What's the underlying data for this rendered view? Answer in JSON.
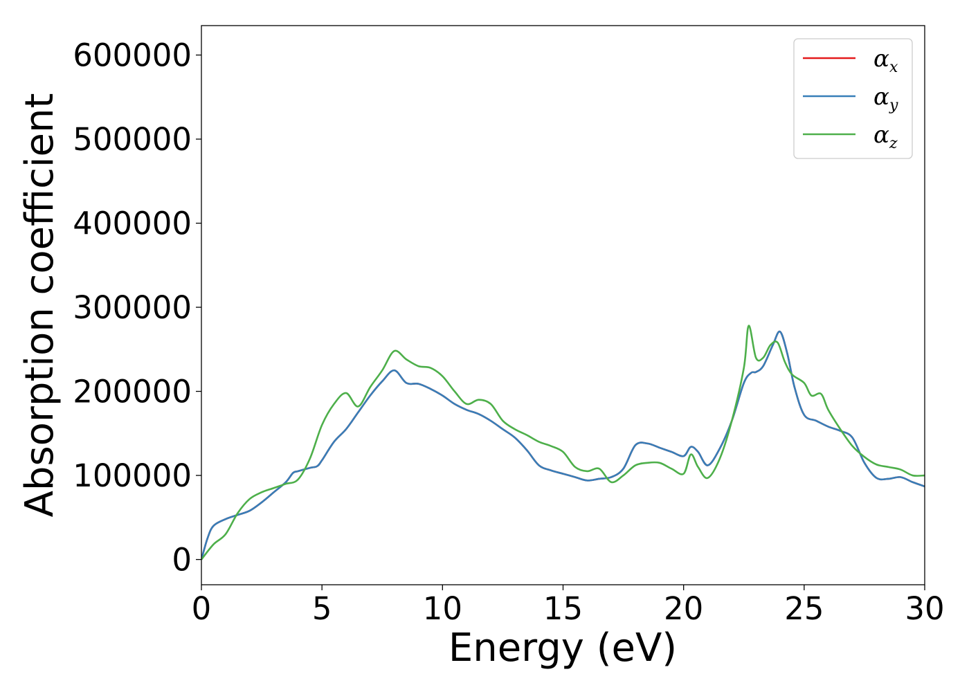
{
  "chart_data": {
    "type": "line",
    "title": "",
    "xlabel": "Energy (eV)",
    "ylabel": "Absorption coefficient",
    "xlim": [
      0,
      30
    ],
    "ylim": [
      -30000,
      635000
    ],
    "xticks": [
      0,
      5,
      10,
      15,
      20,
      25,
      30
    ],
    "yticks": [
      0,
      100000,
      200000,
      300000,
      400000,
      500000,
      600000
    ],
    "xtick_labels": [
      "0",
      "5",
      "10",
      "15",
      "20",
      "25",
      "30"
    ],
    "ytick_labels": [
      "0",
      "100000",
      "200000",
      "300000",
      "400000",
      "500000",
      "600000"
    ],
    "grid": false,
    "legend_position": "top-right",
    "series": [
      {
        "name": "αx",
        "label_base": "α",
        "label_sub": "x",
        "color": "#e41a1c",
        "x": [
          0,
          0.25,
          0.5,
          1,
          1.5,
          2,
          2.5,
          3,
          3.5,
          3.8,
          4,
          4.5,
          4.8,
          5,
          5.5,
          6,
          6.5,
          7,
          7.5,
          8,
          8.5,
          9,
          9.5,
          10,
          10.5,
          11,
          11.5,
          12,
          12.5,
          13,
          13.5,
          14,
          14.5,
          15,
          15.5,
          16,
          16.5,
          17,
          17.5,
          18,
          18.5,
          19,
          19.5,
          20,
          20.3,
          20.6,
          21,
          21.5,
          22,
          22.5,
          22.8,
          23,
          23.3,
          23.7,
          24,
          24.3,
          24.6,
          25,
          25.5,
          26,
          26.5,
          27,
          27.5,
          28,
          28.5,
          29,
          29.5,
          30
        ],
        "values": [
          0,
          25000,
          40000,
          48000,
          53000,
          58000,
          68000,
          80000,
          92000,
          103000,
          105000,
          109000,
          111000,
          118000,
          140000,
          155000,
          175000,
          195000,
          212000,
          225000,
          210000,
          209000,
          203000,
          195000,
          185000,
          178000,
          173000,
          165000,
          155000,
          145000,
          130000,
          112000,
          106000,
          102000,
          98000,
          94000,
          96000,
          98000,
          108000,
          136000,
          138000,
          133000,
          128000,
          123000,
          134000,
          128000,
          112000,
          132000,
          165000,
          210000,
          222000,
          223000,
          230000,
          255000,
          271000,
          245000,
          205000,
          172000,
          165000,
          158000,
          153000,
          145000,
          115000,
          97000,
          96000,
          98000,
          92000,
          87000
        ]
      },
      {
        "name": "αy",
        "label_base": "α",
        "label_sub": "y",
        "color": "#377eb8",
        "x": [
          0,
          0.25,
          0.5,
          1,
          1.5,
          2,
          2.5,
          3,
          3.5,
          3.8,
          4,
          4.5,
          4.8,
          5,
          5.5,
          6,
          6.5,
          7,
          7.5,
          8,
          8.5,
          9,
          9.5,
          10,
          10.5,
          11,
          11.5,
          12,
          12.5,
          13,
          13.5,
          14,
          14.5,
          15,
          15.5,
          16,
          16.5,
          17,
          17.5,
          18,
          18.5,
          19,
          19.5,
          20,
          20.3,
          20.6,
          21,
          21.5,
          22,
          22.5,
          22.8,
          23,
          23.3,
          23.7,
          24,
          24.3,
          24.6,
          25,
          25.5,
          26,
          26.5,
          27,
          27.5,
          28,
          28.5,
          29,
          29.5,
          30
        ],
        "values": [
          0,
          25000,
          40000,
          48000,
          53000,
          58000,
          68000,
          80000,
          92000,
          103000,
          105000,
          109000,
          111000,
          118000,
          140000,
          155000,
          175000,
          195000,
          212000,
          225000,
          210000,
          209000,
          203000,
          195000,
          185000,
          178000,
          173000,
          165000,
          155000,
          145000,
          130000,
          112000,
          106000,
          102000,
          98000,
          94000,
          96000,
          98000,
          108000,
          136000,
          138000,
          133000,
          128000,
          123000,
          134000,
          128000,
          112000,
          132000,
          165000,
          210000,
          222000,
          223000,
          230000,
          255000,
          271000,
          245000,
          205000,
          172000,
          165000,
          158000,
          153000,
          145000,
          115000,
          97000,
          96000,
          98000,
          92000,
          87000
        ]
      },
      {
        "name": "αz",
        "label_base": "α",
        "label_sub": "z",
        "color": "#4daf4a",
        "x": [
          0,
          0.5,
          1,
          1.5,
          2,
          2.5,
          3,
          3.5,
          4,
          4.5,
          5,
          5.5,
          6,
          6.5,
          7,
          7.5,
          8,
          8.5,
          9,
          9.5,
          10,
          10.5,
          11,
          11.5,
          12,
          12.5,
          13,
          13.5,
          14,
          14.5,
          15,
          15.5,
          16,
          16.5,
          17,
          17.5,
          18,
          18.5,
          19,
          19.5,
          20,
          20.3,
          20.6,
          21,
          21.5,
          22,
          22.5,
          22.7,
          23,
          23.3,
          23.6,
          23.9,
          24.2,
          24.5,
          25,
          25.3,
          25.7,
          26,
          26.5,
          27,
          27.5,
          28,
          28.5,
          29,
          29.5,
          30
        ],
        "values": [
          0,
          18000,
          30000,
          55000,
          72000,
          80000,
          85000,
          90000,
          95000,
          120000,
          160000,
          185000,
          198000,
          182000,
          205000,
          225000,
          248000,
          238000,
          230000,
          228000,
          218000,
          200000,
          185000,
          190000,
          185000,
          165000,
          155000,
          148000,
          140000,
          135000,
          128000,
          110000,
          105000,
          108000,
          92000,
          100000,
          112000,
          115000,
          115000,
          108000,
          102000,
          125000,
          110000,
          97000,
          120000,
          165000,
          228000,
          278000,
          240000,
          240000,
          255000,
          258000,
          235000,
          220000,
          210000,
          195000,
          197000,
          178000,
          155000,
          135000,
          122000,
          113000,
          110000,
          107000,
          100000,
          100000
        ]
      }
    ]
  }
}
